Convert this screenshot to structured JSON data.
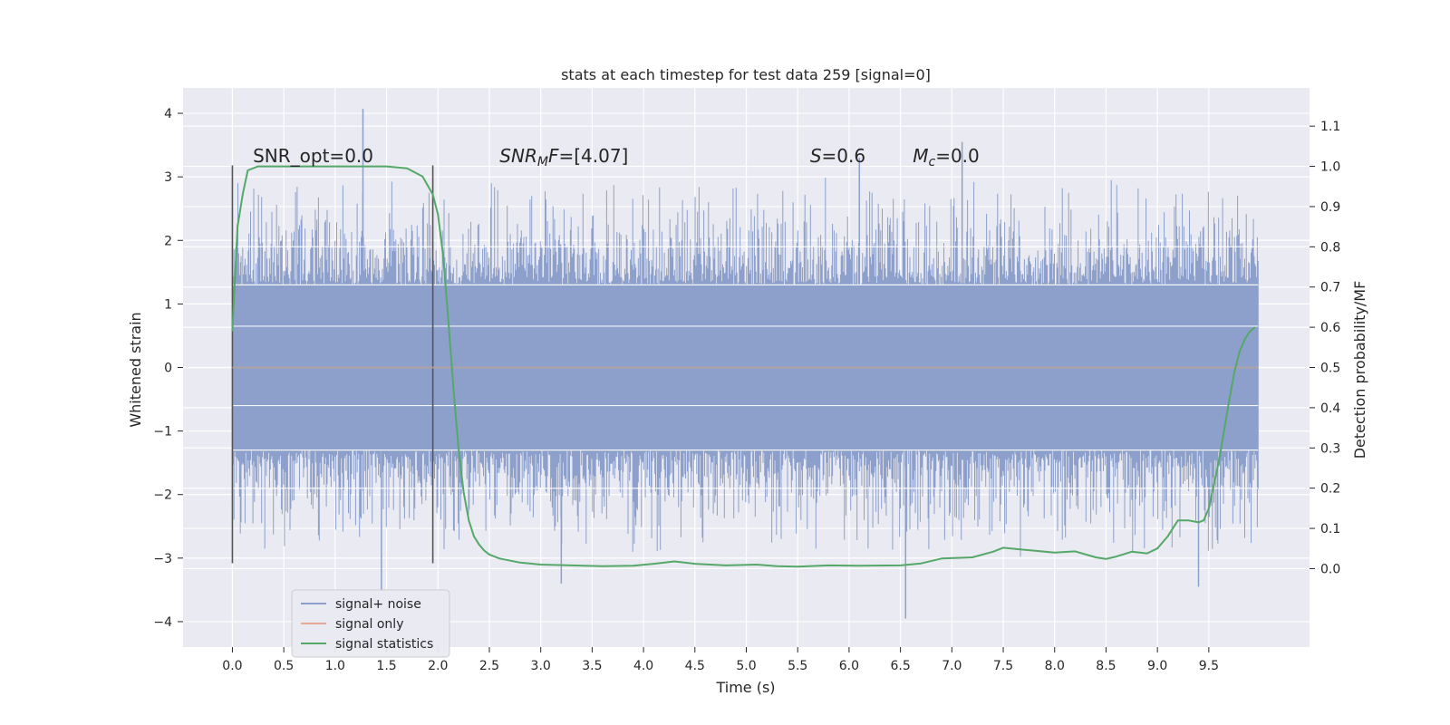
{
  "chart_data": {
    "type": "line",
    "title": "stats at each timestep for test data 259 [signal=0]",
    "xlabel": "Time (s)",
    "ylabel": "Whitened strain",
    "y2label": "Detection probability/MF",
    "xlim": [
      -0.48,
      10.48
    ],
    "ylim": [
      -4.4,
      4.4
    ],
    "y2lim": [
      -0.195,
      1.195
    ],
    "x_ticks": [
      0.0,
      0.5,
      1.0,
      1.5,
      2.0,
      2.5,
      3.0,
      3.5,
      4.0,
      4.5,
      5.0,
      5.5,
      6.0,
      6.5,
      7.0,
      7.5,
      8.0,
      8.5,
      9.0,
      9.5
    ],
    "x_tick_labels": [
      "0.0",
      "0.5",
      "1.0",
      "1.5",
      "2.0",
      "2.5",
      "3.0",
      "3.5",
      "4.0",
      "4.5",
      "5.0",
      "5.5",
      "6.0",
      "6.5",
      "7.0",
      "7.5",
      "8.0",
      "8.5",
      "9.0",
      "9.5"
    ],
    "y_ticks": [
      -4,
      -3,
      -2,
      -1,
      0,
      1,
      2,
      3,
      4
    ],
    "y_tick_labels": [
      "−4",
      "−3",
      "−2",
      "−1",
      "0",
      "1",
      "2",
      "3",
      "4"
    ],
    "y2_ticks": [
      0.0,
      0.1,
      0.2,
      0.3,
      0.4,
      0.5,
      0.6,
      0.7,
      0.8,
      0.9,
      1.0,
      1.1
    ],
    "y2_tick_labels": [
      "0.0",
      "0.1",
      "0.2",
      "0.3",
      "0.4",
      "0.5",
      "0.6",
      "0.7",
      "0.8",
      "0.9",
      "1.0",
      "1.1"
    ],
    "grid": true,
    "legend_placement": "lower-left",
    "noise": {
      "x_start": 0.0,
      "x_end": 9.98,
      "band": [
        -1.3,
        1.3
      ],
      "typical_extreme": [
        -2.8,
        2.8
      ],
      "max": 4.07,
      "min": -3.95
    },
    "window_lines": [
      {
        "x": 0.0,
        "y_range": [
          -3.08,
          3.18
        ]
      },
      {
        "x": 1.95,
        "y_range": [
          -3.08,
          3.18
        ]
      }
    ],
    "annotations": [
      {
        "x": 0.2,
        "y": 3.2,
        "parts": [
          {
            "t": "SNR_opt=0.0",
            "it": false
          }
        ]
      },
      {
        "x": 2.6,
        "y": 3.2,
        "parts": [
          {
            "t": "SNR",
            "it": true
          },
          {
            "t": "M",
            "it": true,
            "sub": true
          },
          {
            "t": "F",
            "it": true
          },
          {
            "t": "=[4.07]",
            "it": false
          }
        ]
      },
      {
        "x": 5.62,
        "y": 3.2,
        "parts": [
          {
            "t": "S",
            "it": true
          },
          {
            "t": "=0.6",
            "it": false
          }
        ]
      },
      {
        "x": 6.62,
        "y": 3.2,
        "parts": [
          {
            "t": "M",
            "it": true
          },
          {
            "t": "c",
            "it": true,
            "sub": true
          },
          {
            "t": "=0.0",
            "it": false
          }
        ]
      }
    ],
    "series": [
      {
        "name": "signal+ noise",
        "color": "#8da0cb"
      },
      {
        "name": "signal only",
        "color": "#e5a996",
        "x": [
          0.0,
          9.98
        ],
        "y": [
          0.0,
          0.0
        ]
      },
      {
        "name": "signal statistics",
        "color": "#55a868",
        "axis": "right",
        "x": [
          0.0,
          0.05,
          0.1,
          0.15,
          0.25,
          0.5,
          1.0,
          1.5,
          1.7,
          1.85,
          1.95,
          2.0,
          2.05,
          2.1,
          2.15,
          2.2,
          2.25,
          2.3,
          2.35,
          2.4,
          2.45,
          2.5,
          2.6,
          2.8,
          3.0,
          3.3,
          3.6,
          3.9,
          4.1,
          4.3,
          4.5,
          4.8,
          5.1,
          5.3,
          5.5,
          5.8,
          6.1,
          6.5,
          6.7,
          6.9,
          7.2,
          7.4,
          7.5,
          7.7,
          8.0,
          8.2,
          8.4,
          8.5,
          8.6,
          8.75,
          8.9,
          9.0,
          9.1,
          9.2,
          9.3,
          9.4,
          9.45,
          9.5,
          9.6,
          9.7,
          9.75,
          9.8,
          9.85,
          9.9,
          9.95
        ],
        "y": [
          0.59,
          0.85,
          0.93,
          0.99,
          1.0,
          1.0,
          1.0,
          1.0,
          0.995,
          0.975,
          0.93,
          0.88,
          0.78,
          0.62,
          0.45,
          0.3,
          0.19,
          0.12,
          0.08,
          0.06,
          0.045,
          0.035,
          0.025,
          0.015,
          0.01,
          0.008,
          0.006,
          0.007,
          0.012,
          0.018,
          0.012,
          0.008,
          0.01,
          0.006,
          0.005,
          0.008,
          0.007,
          0.008,
          0.013,
          0.025,
          0.028,
          0.042,
          0.052,
          0.047,
          0.04,
          0.043,
          0.028,
          0.024,
          0.03,
          0.042,
          0.038,
          0.05,
          0.08,
          0.12,
          0.12,
          0.115,
          0.12,
          0.15,
          0.27,
          0.42,
          0.49,
          0.54,
          0.57,
          0.59,
          0.6
        ]
      }
    ],
    "legend": [
      {
        "label": "signal+ noise",
        "color": "#8da0cb"
      },
      {
        "label": "signal only",
        "color": "#e5a996"
      },
      {
        "label": "signal statistics",
        "color": "#55a868"
      }
    ]
  }
}
